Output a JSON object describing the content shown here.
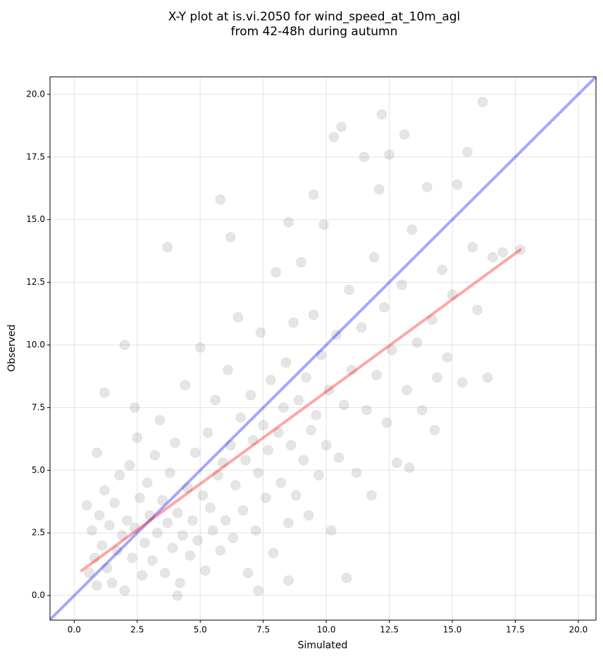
{
  "chart_data": {
    "type": "scatter",
    "title": [
      "X-Y plot at is.vi.2050 for wind_speed_at_10m_agl",
      "from 42-48h during autumn"
    ],
    "x_label": "Simulated",
    "y_label": "Observed",
    "xlim": [
      -0.96,
      20.7
    ],
    "ylim": [
      -0.98,
      20.7
    ],
    "xticks": [
      {
        "value": 0,
        "label": "0.0"
      },
      2.5,
      {
        "value": 5,
        "label": "5.0"
      },
      7.5,
      {
        "value": 10,
        "label": "10.0"
      },
      12.5,
      {
        "value": 15,
        "label": "15.0"
      },
      17.5,
      {
        "value": 20,
        "label": "20.0"
      }
    ],
    "yticks": [
      {
        "value": 0,
        "label": "0.0"
      },
      2.5,
      {
        "value": 5,
        "label": "5.0"
      },
      7.5,
      {
        "value": 10,
        "label": "10.0"
      },
      12.5,
      {
        "value": 15,
        "label": "15.0"
      },
      17.5,
      {
        "value": 20,
        "label": "20.0"
      }
    ],
    "grid": true,
    "color": "#000000",
    "x": [
      0.5,
      0.7,
      0.8,
      0.9,
      1.0,
      1.1,
      1.2,
      1.3,
      1.4,
      1.5,
      1.6,
      1.7,
      1.8,
      1.9,
      2.0,
      2.1,
      2.2,
      2.3,
      2.4,
      2.5,
      2.6,
      2.7,
      2.8,
      2.9,
      3.0,
      3.1,
      3.2,
      3.3,
      3.4,
      3.5,
      3.6,
      3.7,
      3.8,
      3.9,
      4.0,
      4.1,
      4.2,
      4.3,
      4.4,
      4.5,
      4.6,
      4.7,
      4.8,
      4.9,
      5.0,
      5.1,
      5.2,
      5.3,
      5.4,
      5.5,
      5.6,
      5.7,
      5.8,
      5.9,
      6.0,
      6.1,
      6.2,
      6.3,
      6.4,
      6.5,
      6.6,
      6.7,
      6.8,
      6.9,
      7.0,
      7.1,
      7.2,
      7.3,
      7.4,
      7.5,
      7.6,
      7.7,
      7.8,
      7.9,
      8.0,
      8.1,
      8.2,
      8.3,
      8.4,
      8.5,
      8.6,
      8.7,
      8.8,
      8.9,
      9.0,
      9.1,
      9.2,
      9.3,
      9.4,
      9.5,
      9.6,
      9.7,
      9.8,
      9.9,
      10.0,
      10.1,
      10.2,
      10.3,
      10.4,
      10.5,
      10.6,
      10.7,
      10.8,
      10.9,
      11.0,
      11.2,
      11.4,
      11.6,
      11.8,
      11.9,
      12.0,
      12.2,
      12.3,
      12.4,
      12.5,
      12.6,
      12.8,
      13.0,
      13.1,
      13.2,
      13.4,
      13.6,
      13.8,
      14.0,
      14.2,
      14.4,
      14.6,
      14.8,
      15.0,
      15.2,
      15.4,
      15.6,
      15.8,
      16.0,
      16.2,
      16.4,
      16.6,
      17.0,
      17.7,
      0.6,
      1.2,
      2.0,
      3.7,
      5.8,
      0.9,
      6.2,
      8.5,
      9.5,
      11.5,
      12.1,
      2.4,
      4.1,
      7.3,
      8.5,
      13.3,
      14.3
    ],
    "y": [
      3.6,
      2.6,
      1.5,
      0.4,
      3.2,
      2.0,
      4.2,
      1.1,
      2.8,
      0.5,
      3.7,
      1.8,
      4.8,
      2.4,
      0.2,
      3.0,
      5.2,
      1.5,
      2.7,
      6.3,
      3.9,
      0.8,
      2.1,
      4.5,
      3.2,
      1.4,
      5.6,
      2.5,
      7.0,
      3.8,
      0.9,
      2.9,
      4.9,
      1.9,
      6.1,
      3.3,
      0.5,
      2.4,
      8.4,
      4.3,
      1.6,
      3.0,
      5.7,
      2.2,
      9.9,
      4.0,
      1.0,
      6.5,
      3.5,
      2.6,
      7.8,
      4.8,
      1.8,
      5.3,
      3.0,
      9.0,
      6.0,
      2.3,
      4.4,
      11.1,
      7.1,
      3.4,
      5.4,
      0.9,
      8.0,
      6.2,
      2.6,
      4.9,
      10.5,
      6.8,
      3.9,
      5.8,
      8.6,
      1.7,
      12.9,
      6.5,
      4.5,
      7.5,
      9.3,
      2.9,
      6.0,
      10.9,
      4.0,
      7.8,
      13.3,
      5.4,
      8.7,
      3.2,
      6.6,
      11.2,
      7.2,
      4.8,
      9.6,
      14.8,
      6.0,
      8.2,
      2.6,
      18.3,
      10.4,
      5.5,
      18.7,
      7.6,
      0.7,
      12.2,
      9.0,
      4.9,
      10.7,
      7.4,
      4.0,
      13.5,
      8.8,
      19.2,
      11.5,
      6.9,
      17.6,
      9.8,
      5.3,
      12.4,
      18.4,
      8.2,
      14.6,
      10.1,
      7.4,
      16.3,
      11.0,
      8.7,
      13.0,
      9.5,
      12.0,
      16.4,
      8.5,
      17.7,
      13.9,
      11.4,
      19.7,
      8.7,
      13.5,
      13.7,
      13.8,
      0.9,
      8.1,
      10.0,
      13.9,
      15.8,
      5.7,
      14.3,
      14.9,
      16.0,
      17.5,
      16.2,
      7.5,
      0.0,
      0.2,
      0.6,
      5.1,
      6.6
    ],
    "lines": [
      {
        "color": "#0000ff",
        "x": [
          -0.96,
          20.7
        ],
        "y": [
          -0.96,
          20.7
        ]
      },
      {
        "color": "#ff0000",
        "x": [
          0.3,
          17.7
        ],
        "y": [
          1.0,
          13.8
        ]
      }
    ]
  }
}
